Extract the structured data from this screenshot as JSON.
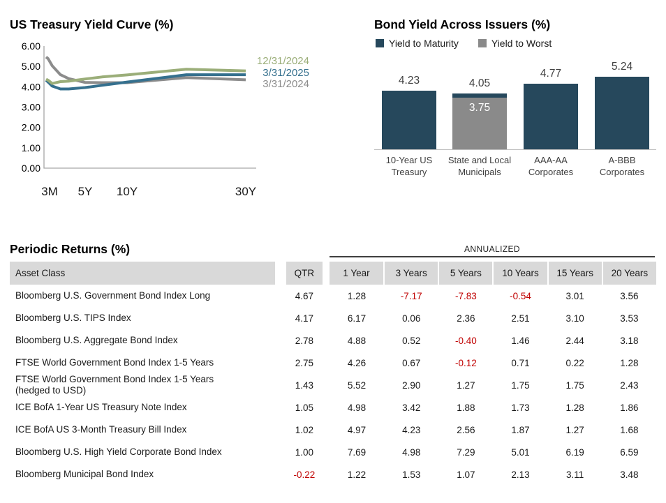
{
  "chart_data": [
    {
      "type": "line",
      "title": "US Treasury Yield Curve (%)",
      "ylim": [
        0,
        6
      ],
      "y_ticks": [
        "6.00",
        "5.00",
        "4.00",
        "3.00",
        "2.00",
        "1.00",
        "0.00"
      ],
      "x_tick_labels": [
        "3M",
        "5Y",
        "10Y",
        "30Y"
      ],
      "x_tick_years": [
        0.25,
        5,
        10,
        30
      ],
      "x_years": [
        0.25,
        0.5,
        1,
        2,
        3,
        5,
        7,
        10,
        20,
        30
      ],
      "grid": false,
      "legend_position": "right-of-line-ends",
      "series": [
        {
          "name": "12/31/2024",
          "color": "#9BAE79",
          "values": [
            4.37,
            4.32,
            4.16,
            4.25,
            4.27,
            4.38,
            4.48,
            4.58,
            4.86,
            4.78
          ]
        },
        {
          "name": "3/31/2025",
          "color": "#35708E",
          "values": [
            4.32,
            4.23,
            4.03,
            3.89,
            3.89,
            3.96,
            4.07,
            4.23,
            4.59,
            4.59
          ]
        },
        {
          "name": "3/31/2024",
          "color": "#8C8C8C",
          "values": [
            5.46,
            5.38,
            5.03,
            4.59,
            4.4,
            4.21,
            4.2,
            4.2,
            4.45,
            4.34
          ]
        }
      ]
    },
    {
      "type": "bar",
      "title": "Bond Yield Across Issuers (%)",
      "legend": [
        {
          "label": "Yield to Maturity",
          "color": "#26485C"
        },
        {
          "label": "Yield to Worst",
          "color": "#8A8A8A"
        }
      ],
      "categories": [
        "10-Year US\nTreasury",
        "State and Local\nMunicipals",
        "AAA-AA\nCorporates",
        "A-BBB\nCorporates"
      ],
      "series": [
        {
          "name": "Yield to Maturity",
          "values": [
            4.23,
            4.05,
            4.77,
            5.24
          ]
        },
        {
          "name": "Yield to Worst",
          "values": [
            null,
            3.75,
            null,
            null
          ]
        }
      ],
      "value_labels": [
        "4.23",
        "4.05",
        "4.77",
        "5.24"
      ],
      "inner_labels": [
        null,
        "3.75",
        null,
        null
      ]
    }
  ],
  "table": {
    "title": "Periodic Returns (%)",
    "group_header": "ANNUALIZED",
    "columns": [
      "Asset Class",
      "QTR",
      "1 Year",
      "3 Years",
      "5 Years",
      "10 Years",
      "15 Years",
      "20 Years"
    ],
    "negative_color": "#C00000",
    "rows": [
      {
        "name": "Bloomberg U.S. Government Bond Index Long",
        "values": [
          "4.67",
          "1.28",
          "-7.17",
          "-7.83",
          "-0.54",
          "3.01",
          "3.56"
        ]
      },
      {
        "name": "Bloomberg U.S. TIPS Index",
        "values": [
          "4.17",
          "6.17",
          "0.06",
          "2.36",
          "2.51",
          "3.10",
          "3.53"
        ]
      },
      {
        "name": "Bloomberg U.S. Aggregate Bond Index",
        "values": [
          "2.78",
          "4.88",
          "0.52",
          "-0.40",
          "1.46",
          "2.44",
          "3.18"
        ]
      },
      {
        "name": "FTSE World Government Bond Index 1-5 Years",
        "values": [
          "2.75",
          "4.26",
          "0.67",
          "-0.12",
          "0.71",
          "0.22",
          "1.28"
        ]
      },
      {
        "name": "FTSE World Government Bond Index 1-5 Years\n(hedged to USD)",
        "values": [
          "1.43",
          "5.52",
          "2.90",
          "1.27",
          "1.75",
          "1.75",
          "2.43"
        ]
      },
      {
        "name": "ICE BofA 1-Year US Treasury Note Index",
        "values": [
          "1.05",
          "4.98",
          "3.42",
          "1.88",
          "1.73",
          "1.28",
          "1.86"
        ]
      },
      {
        "name": "ICE BofA US 3-Month Treasury Bill Index",
        "values": [
          "1.02",
          "4.97",
          "4.23",
          "2.56",
          "1.87",
          "1.27",
          "1.68"
        ]
      },
      {
        "name": "Bloomberg U.S. High Yield Corporate Bond Index",
        "values": [
          "1.00",
          "7.69",
          "4.98",
          "7.29",
          "5.01",
          "6.19",
          "6.59"
        ]
      },
      {
        "name": "Bloomberg Municipal Bond Index",
        "values": [
          "-0.22",
          "1.22",
          "1.53",
          "1.07",
          "2.13",
          "3.11",
          "3.48"
        ]
      }
    ]
  },
  "colors": {
    "bar_dark": "#26485C",
    "bar_gray": "#8A8A8A",
    "axis_line": "#A6A6A6",
    "bar_baseline": "#BFBFBF",
    "header_bg": "#D9D9D9",
    "negative": "#C00000"
  }
}
